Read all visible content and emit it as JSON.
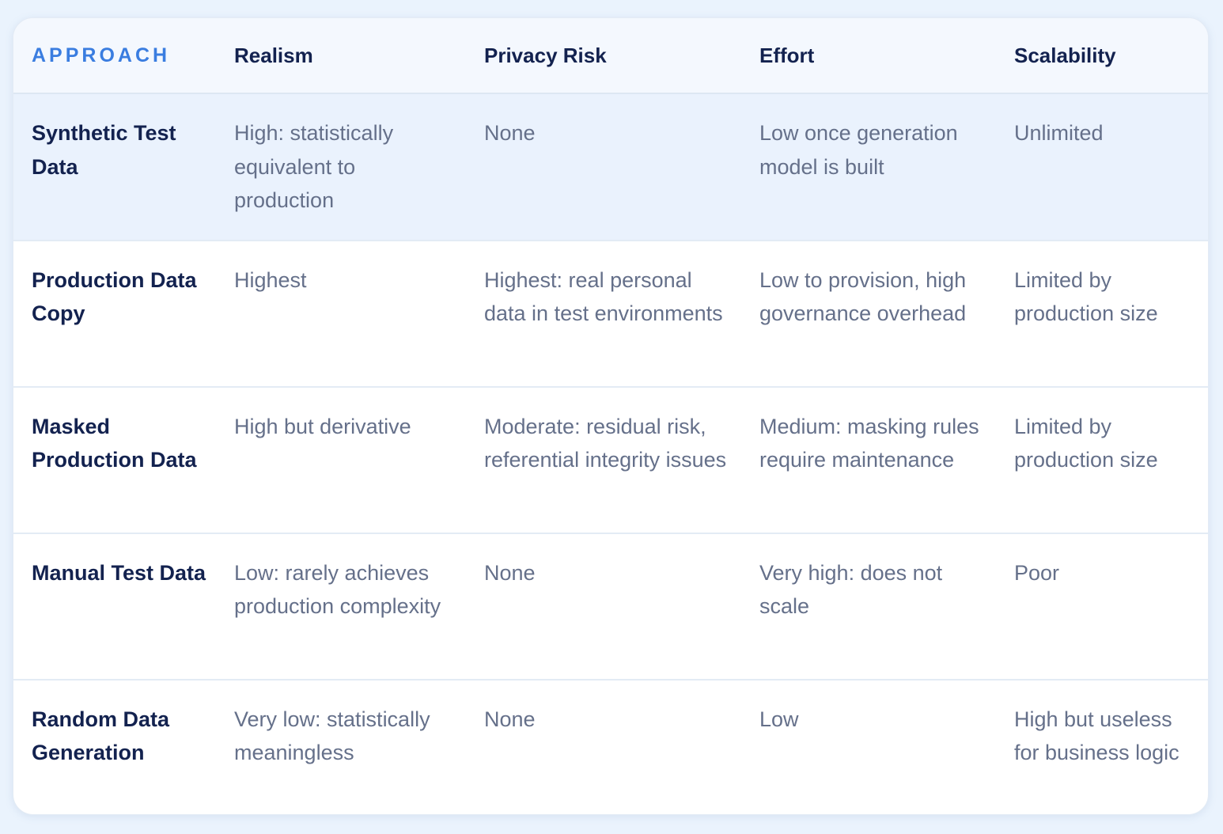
{
  "header": {
    "approach": "APPROACH",
    "realism": "Realism",
    "privacy_risk": "Privacy Risk",
    "effort": "Effort",
    "scalability": "Scalability"
  },
  "rows": [
    {
      "approach": "Synthetic Test Data",
      "realism": "High: statistically equivalent to production",
      "privacy_risk": "None",
      "effort": "Low once generation model is built",
      "scalability": "Unlimited"
    },
    {
      "approach": "Production Data Copy",
      "realism": "Highest",
      "privacy_risk": "Highest: real personal data in test environments",
      "effort": "Low to provision, high governance overhead",
      "scalability": "Limited by production size"
    },
    {
      "approach": "Masked Production Data",
      "realism": "High but derivative",
      "privacy_risk": "Moderate: residual risk, referential integrity issues",
      "effort": "Medium: masking rules require maintenance",
      "scalability": "Limited by production size"
    },
    {
      "approach": "Manual Test Data",
      "realism": "Low: rarely achieves production complexity",
      "privacy_risk": "None",
      "effort": "Very high: does not scale",
      "scalability": "Poor"
    },
    {
      "approach": "Random Data Generation",
      "realism": "Very low: statistically meaningless",
      "privacy_risk": "None",
      "effort": "Low",
      "scalability": "High but useless for business logic"
    }
  ],
  "colors": {
    "accent": "#3a7de0",
    "heading_text": "#13224f",
    "body_text": "#65708a",
    "highlight_row": "#eaf2fd",
    "page_background": "#eaf3fd"
  }
}
